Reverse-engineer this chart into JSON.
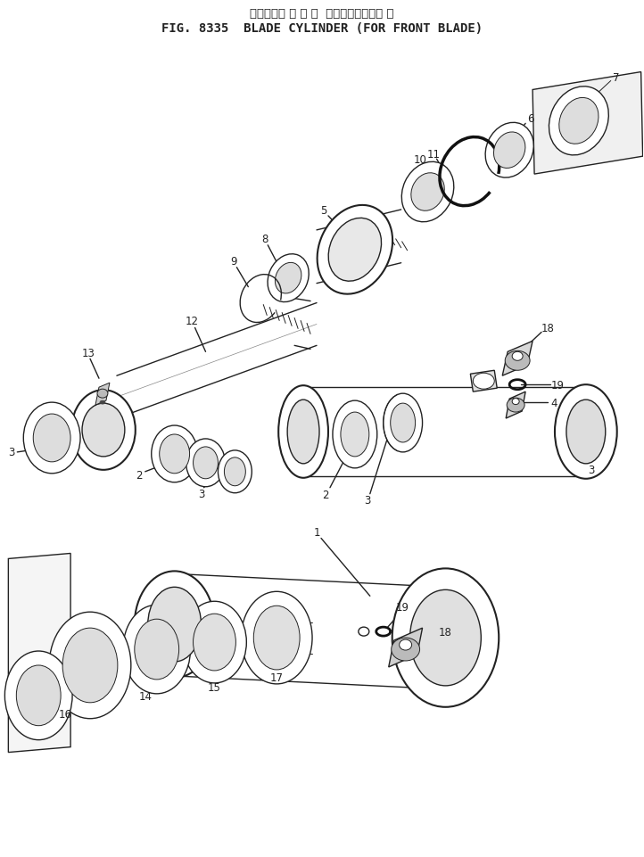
{
  "title_japanese": "ブレードシ リ ン ダ  フロントブレード 用",
  "title_english": "FIG. 8335  BLADE CYLINDER (FOR FRONT BLADE)",
  "bg_color": "#ffffff",
  "line_color": "#222222",
  "label_color": "#222222",
  "label_fontsize": 8.5,
  "fig_width": 7.22,
  "fig_height": 9.62,
  "dpi": 100
}
